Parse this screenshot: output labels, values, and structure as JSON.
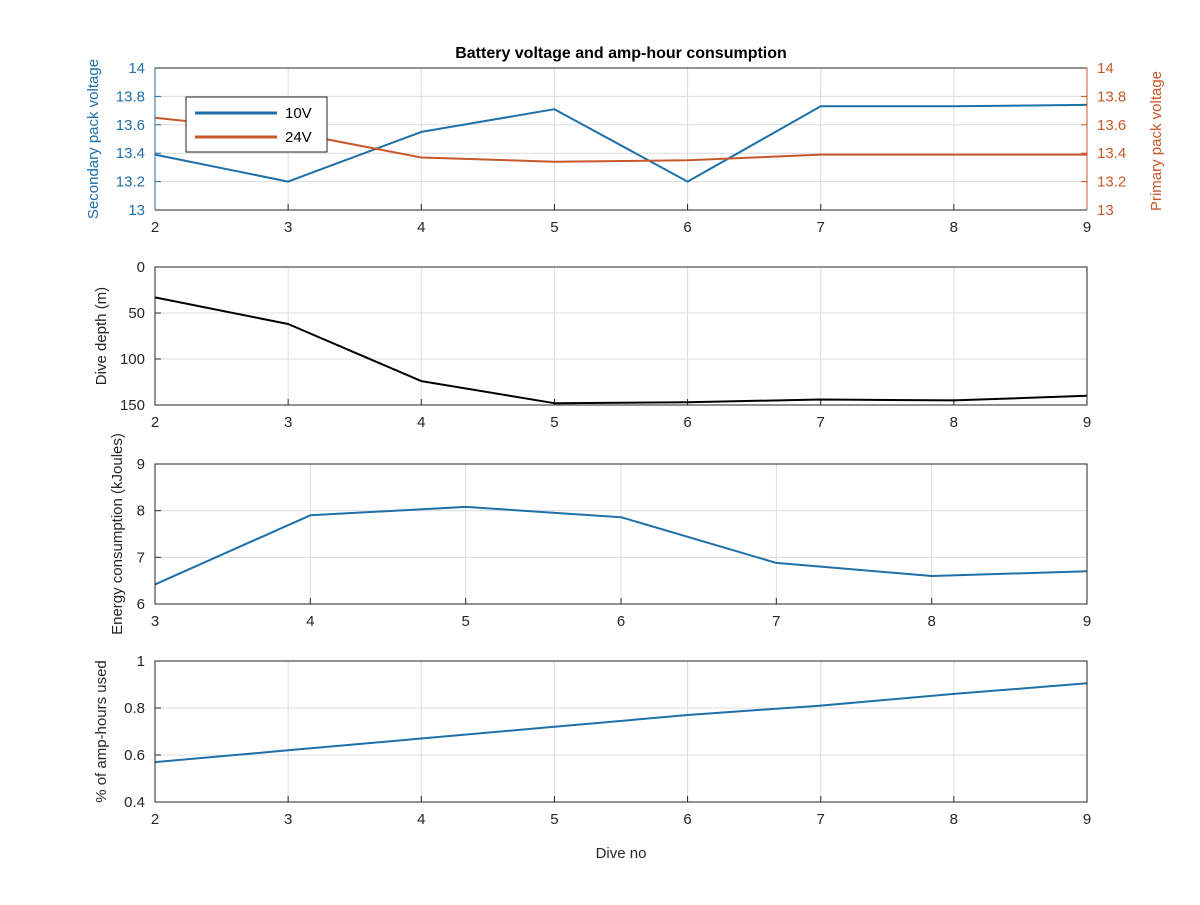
{
  "figure_title": "Battery voltage and amp-hour consumption",
  "colors": {
    "blue": "#1f6fa8",
    "orange": "#c8582a",
    "black": "#000000",
    "axis": "#262626",
    "grid": "#dcdcdc"
  },
  "chart_data": [
    {
      "type": "line",
      "title": "Battery voltage and amp-hour consumption",
      "xlabel": "",
      "ylabel": "Secondary pack voltage",
      "ylabel_right": "Primary pack voltage",
      "xlim": [
        2,
        9
      ],
      "ylim": [
        13,
        14
      ],
      "ylim_right": [
        13,
        14
      ],
      "x_ticks": [
        "2",
        "3",
        "4",
        "5",
        "6",
        "7",
        "8",
        "9"
      ],
      "y_ticks": [
        "13",
        "13.2",
        "13.4",
        "13.6",
        "13.8",
        "14"
      ],
      "y_ticks_right": [
        "13",
        "13.2",
        "13.4",
        "13.6",
        "13.8",
        "14"
      ],
      "grid": true,
      "legend_position": "top-left",
      "series": [
        {
          "name": "10V",
          "axis": "left",
          "color": "#1f6fa8",
          "x": [
            2,
            3,
            4,
            5,
            6,
            7,
            8,
            9
          ],
          "values": [
            13.39,
            13.2,
            13.55,
            13.71,
            13.2,
            13.73,
            13.73,
            13.74
          ]
        },
        {
          "name": "24V",
          "axis": "right",
          "color": "#c8582a",
          "x": [
            2,
            3,
            4,
            5,
            6,
            7,
            8,
            9
          ],
          "values": [
            13.65,
            13.55,
            13.37,
            13.34,
            13.35,
            13.39,
            13.39,
            13.39
          ]
        }
      ]
    },
    {
      "type": "line",
      "xlabel": "",
      "ylabel": "Dive depth (m)",
      "xlim": [
        2,
        9
      ],
      "ylim": [
        0,
        150
      ],
      "y_reversed": true,
      "x_ticks": [
        "2",
        "3",
        "4",
        "5",
        "6",
        "7",
        "8",
        "9"
      ],
      "y_ticks": [
        "0",
        "50",
        "100",
        "150"
      ],
      "grid": true,
      "series": [
        {
          "color": "#000000",
          "x": [
            2,
            3,
            4,
            5,
            6,
            7,
            8,
            9
          ],
          "values": [
            33,
            62,
            124,
            148,
            147,
            144,
            145,
            140
          ]
        }
      ]
    },
    {
      "type": "line",
      "xlabel": "",
      "ylabel": "Energy consumption (kJoules)",
      "xlim": [
        3,
        9
      ],
      "ylim": [
        6,
        9
      ],
      "x_ticks": [
        "3",
        "4",
        "5",
        "6",
        "7",
        "8",
        "9"
      ],
      "y_ticks": [
        "6",
        "7",
        "8",
        "9"
      ],
      "grid": true,
      "series": [
        {
          "color": "#1f6fa8",
          "x": [
            3,
            4,
            5,
            6,
            7,
            8,
            9
          ],
          "values": [
            6.42,
            7.9,
            8.08,
            7.86,
            6.88,
            6.6,
            6.7
          ]
        }
      ]
    },
    {
      "type": "line",
      "xlabel": "Dive no",
      "ylabel": "% of amp-hours used",
      "xlim": [
        2,
        9
      ],
      "ylim": [
        0.4,
        1
      ],
      "x_ticks": [
        "2",
        "3",
        "4",
        "5",
        "6",
        "7",
        "8",
        "9"
      ],
      "y_ticks": [
        "0.4",
        "0.6",
        "0.8",
        "1"
      ],
      "grid": true,
      "series": [
        {
          "color": "#1f6fa8",
          "x": [
            2,
            3,
            4,
            5,
            6,
            7,
            8,
            9
          ],
          "values": [
            0.57,
            0.62,
            0.67,
            0.72,
            0.77,
            0.81,
            0.86,
            0.905
          ]
        }
      ]
    }
  ]
}
